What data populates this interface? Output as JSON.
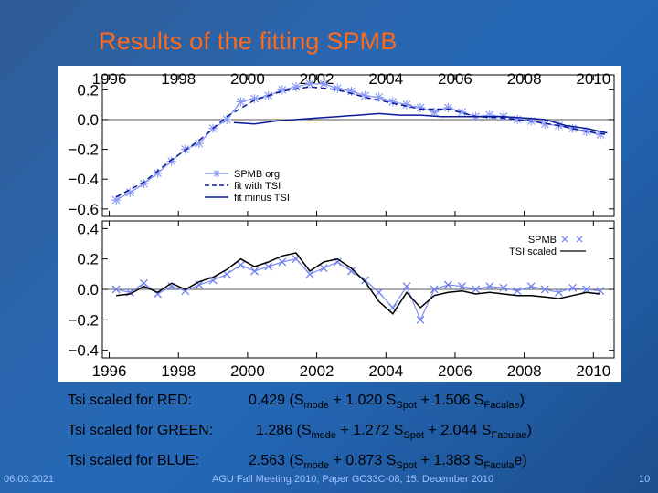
{
  "slide": {
    "title": "Results of the fitting SPMB",
    "footer_date": "06.03.2021",
    "footer_conference": "AGU Fall Meeting 2010, Paper GC33C-08, 15. December 2010",
    "page_number": "10"
  },
  "coefficients": [
    {
      "label": "Tsi scaled for RED:",
      "k": "0.429",
      "a": "1.020",
      "b": "1.506",
      "faculae_sub": "Faculae",
      "close": ")"
    },
    {
      "label": "Tsi scaled for GREEN:",
      "k": "1.286",
      "a": "1.272",
      "b": "2.044",
      "faculae_sub": "Faculae",
      "close": ")"
    },
    {
      "label": "Tsi scaled for BLUE:",
      "k": "2.563",
      "a": "0.873",
      "b": "1.383",
      "faculae_sub": "Facula",
      "close": "e)"
    }
  ],
  "formula": {
    "open": "(S",
    "mode_sub": "mode",
    "plus_a": " + ",
    "spot_s": " S",
    "spot_sub": "Spot",
    "plus_b": " + ",
    "fac_s": " S"
  },
  "chart_data": [
    {
      "type": "line",
      "title": "",
      "xticks": [
        "1996",
        "1998",
        "2000",
        "2002",
        "2004",
        "2006",
        "2008",
        "2010"
      ],
      "xlim": [
        1995.8,
        2010.6
      ],
      "ylim": [
        -0.65,
        0.3
      ],
      "yticks": [
        "0.2",
        "0.0",
        "−0.2",
        "−0.4",
        "−0.6"
      ],
      "ytick_values": [
        0.2,
        0.0,
        -0.2,
        -0.4,
        -0.6
      ],
      "legend": [
        "SPMB org",
        "fit with TSI",
        "fit minus TSI"
      ],
      "series": [
        {
          "name": "SPMB org",
          "style": "asterisk",
          "x": [
            1996.2,
            1996.6,
            1997.0,
            1997.4,
            1997.8,
            1998.2,
            1998.6,
            1999.0,
            1999.4,
            1999.8,
            2000.2,
            2000.6,
            2001.0,
            2001.4,
            2001.8,
            2002.2,
            2002.6,
            2003.0,
            2003.4,
            2003.8,
            2004.2,
            2004.6,
            2005.0,
            2005.4,
            2005.8,
            2006.2,
            2006.6,
            2007.0,
            2007.4,
            2007.8,
            2008.2,
            2008.6,
            2009.0,
            2009.4,
            2009.8,
            2010.2
          ],
          "y": [
            -0.54,
            -0.49,
            -0.43,
            -0.36,
            -0.28,
            -0.2,
            -0.16,
            -0.06,
            0.0,
            0.12,
            0.14,
            0.16,
            0.2,
            0.22,
            0.24,
            0.24,
            0.21,
            0.19,
            0.16,
            0.15,
            0.12,
            0.1,
            0.08,
            0.05,
            0.08,
            0.05,
            0.02,
            0.03,
            0.02,
            0.0,
            -0.01,
            -0.03,
            -0.04,
            -0.06,
            -0.08,
            -0.1
          ]
        },
        {
          "name": "fit with TSI",
          "style": "dashed",
          "x": [
            1996.2,
            1997.0,
            1997.8,
            1998.6,
            1999.4,
            2000.2,
            2001.0,
            2001.8,
            2002.6,
            2003.4,
            2004.2,
            2005.0,
            2005.8,
            2006.6,
            2007.4,
            2008.2,
            2009.0,
            2009.8,
            2010.4
          ],
          "y": [
            -0.52,
            -0.42,
            -0.27,
            -0.14,
            0.02,
            0.13,
            0.19,
            0.22,
            0.2,
            0.15,
            0.11,
            0.07,
            0.07,
            0.02,
            0.01,
            -0.01,
            -0.04,
            -0.08,
            -0.1
          ]
        },
        {
          "name": "fit minus TSI",
          "style": "solid",
          "x": [
            1999.6,
            2000.2,
            2000.8,
            2001.4,
            2002.0,
            2002.6,
            2003.2,
            2003.8,
            2004.4,
            2005.0,
            2005.6,
            2006.2,
            2006.8,
            2007.4,
            2008.0,
            2008.6,
            2009.2,
            2009.8,
            2010.4
          ],
          "y": [
            -0.02,
            -0.03,
            -0.01,
            0.0,
            0.01,
            0.02,
            0.03,
            0.04,
            0.03,
            0.03,
            0.02,
            0.02,
            0.02,
            0.02,
            0.01,
            0.0,
            -0.04,
            -0.06,
            -0.09
          ]
        }
      ],
      "reference_line": 0.0
    },
    {
      "type": "line",
      "title": "",
      "xticks": [
        "1996",
        "1998",
        "2000",
        "2002",
        "2004",
        "2006",
        "2008",
        "2010"
      ],
      "xlim": [
        1995.8,
        2010.6
      ],
      "ylim": [
        -0.45,
        0.45
      ],
      "yticks": [
        "0.4",
        "0.2",
        "0.0",
        "−0.2",
        "−0.4"
      ],
      "ytick_values": [
        0.4,
        0.2,
        0.0,
        -0.2,
        -0.4
      ],
      "legend": [
        "SPMB",
        "TSI scaled"
      ],
      "series": [
        {
          "name": "SPMB",
          "style": "cross",
          "x": [
            1996.2,
            1996.6,
            1997.0,
            1997.4,
            1997.8,
            1998.2,
            1998.6,
            1999.0,
            1999.4,
            1999.8,
            2000.2,
            2000.6,
            2001.0,
            2001.4,
            2001.8,
            2002.2,
            2002.6,
            2003.0,
            2003.4,
            2003.8,
            2004.2,
            2004.6,
            2005.0,
            2005.4,
            2005.8,
            2006.2,
            2006.6,
            2007.0,
            2007.4,
            2007.8,
            2008.2,
            2008.6,
            2009.0,
            2009.4,
            2009.8,
            2010.2
          ],
          "y": [
            0.0,
            -0.02,
            0.04,
            -0.03,
            0.02,
            -0.01,
            0.03,
            0.06,
            0.1,
            0.16,
            0.12,
            0.15,
            0.18,
            0.2,
            0.1,
            0.14,
            0.18,
            0.12,
            0.06,
            -0.02,
            -0.12,
            0.02,
            -0.2,
            0.0,
            0.03,
            0.02,
            0.0,
            0.02,
            0.01,
            -0.01,
            0.02,
            0.0,
            -0.02,
            0.01,
            0.0,
            -0.01
          ]
        },
        {
          "name": "TSI scaled",
          "style": "solid",
          "x": [
            1996.2,
            1996.6,
            1997.0,
            1997.4,
            1997.8,
            1998.2,
            1998.6,
            1999.0,
            1999.4,
            1999.8,
            2000.2,
            2000.6,
            2001.0,
            2001.4,
            2001.8,
            2002.2,
            2002.6,
            2003.0,
            2003.4,
            2003.8,
            2004.2,
            2004.6,
            2005.0,
            2005.4,
            2005.8,
            2006.2,
            2006.6,
            2007.0,
            2007.4,
            2007.8,
            2008.2,
            2008.6,
            2009.0,
            2009.4,
            2009.8,
            2010.2
          ],
          "y": [
            -0.04,
            -0.03,
            0.02,
            -0.02,
            0.04,
            0.0,
            0.05,
            0.08,
            0.13,
            0.2,
            0.15,
            0.18,
            0.22,
            0.24,
            0.12,
            0.18,
            0.2,
            0.14,
            0.05,
            -0.08,
            -0.16,
            -0.02,
            -0.12,
            -0.04,
            -0.02,
            -0.01,
            -0.03,
            -0.02,
            -0.03,
            -0.04,
            -0.04,
            -0.05,
            -0.06,
            -0.04,
            -0.02,
            -0.03
          ]
        }
      ],
      "reference_line": 0.0
    }
  ]
}
